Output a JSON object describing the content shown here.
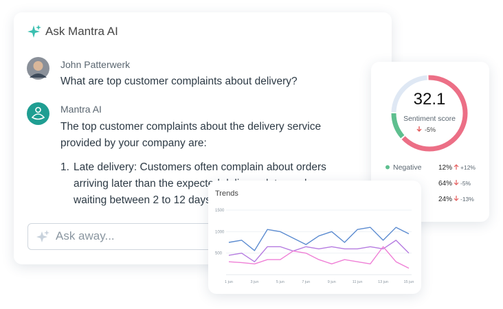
{
  "chat": {
    "title": "Ask Mantra AI",
    "messages": [
      {
        "author": "John Patterwerk",
        "text": "What are top customer complaints about delivery?"
      },
      {
        "author": "Mantra AI",
        "text_lines": [
          "The top customer complaints about the delivery service",
          "provided by your company are:"
        ],
        "list": [
          {
            "number": "1.",
            "lines": [
              "Late delivery: Customers often complain about orders",
              "arriving later than the expected delivery date, and some",
              "waiting between 2 to 12 days"
            ]
          }
        ]
      }
    ],
    "input_placeholder": "Ask away..."
  },
  "chart_data": [
    {
      "type": "donut",
      "center_value": "32.1",
      "center_label": "Sentiment score",
      "center_change": "-5%",
      "categories": [
        "Negative",
        null,
        null
      ],
      "values": [
        12,
        64,
        24
      ],
      "value_labels": [
        "12%",
        "64%",
        "24%"
      ],
      "changes": [
        "+12%",
        "-5%",
        "-13%"
      ],
      "change_directions": [
        "up",
        "down",
        "down"
      ],
      "colors": [
        "#5ebf8f",
        "#ec6f86",
        "#dfe8f4"
      ]
    },
    {
      "type": "line",
      "title": "Trends",
      "categories": [
        "1 jun",
        null,
        "3 jun",
        null,
        "5 jun",
        null,
        "7 jun",
        null,
        "9 jun",
        null,
        "11 jun",
        null,
        "13 jun",
        null,
        "15 jun"
      ],
      "series": [
        {
          "color": "#5b8bd0",
          "values": [
            750,
            800,
            560,
            1050,
            1000,
            850,
            700,
            900,
            1000,
            750,
            1050,
            1100,
            800,
            1100,
            950
          ]
        },
        {
          "color": "#b57be0",
          "values": [
            450,
            500,
            300,
            650,
            650,
            550,
            650,
            600,
            650,
            600,
            600,
            650,
            600,
            800,
            500
          ]
        },
        {
          "color": "#ef7fd6",
          "values": [
            300,
            280,
            250,
            350,
            350,
            550,
            500,
            350,
            250,
            350,
            300,
            250,
            650,
            300,
            150
          ]
        }
      ],
      "ylim": [
        0,
        1500
      ],
      "yticks": [
        500,
        1000,
        1500
      ],
      "grid": true
    }
  ]
}
